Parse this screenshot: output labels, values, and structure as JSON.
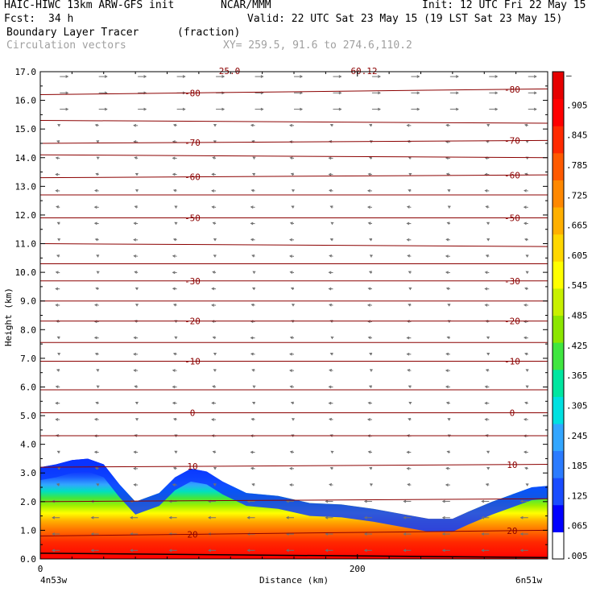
{
  "header": {
    "model": "HAIC-HIWC 13km ARW-GFS init",
    "org": "NCAR/MMM",
    "init": "Init: 12 UTC Fri 22 May 15",
    "fcst_label": "Fcst:",
    "fcst_value": "34 h",
    "valid": "Valid: 22 UTC Sat 23 May 15 (19 LST Sat 23 May 15)",
    "field": "Boundary Layer Tracer",
    "units": "(fraction)",
    "vectors": "Circulation vectors",
    "xy": "XY= 259.5, 91.6 to 274.6,110.2"
  },
  "chart_data": {
    "type": "heatmap",
    "title": "Boundary Layer Tracer",
    "units": "(fraction)",
    "xlabel": "Distance (km)",
    "ylabel": "Height (km)",
    "x_start_label": "4n53w",
    "x_end_label": "6n51w",
    "x_ticks": [
      "0",
      "200"
    ],
    "xlim": [
      0,
      320
    ],
    "ylim": [
      0,
      17
    ],
    "y_ticks": [
      "0.0",
      "1.0",
      "2.0",
      "3.0",
      "4.0",
      "5.0",
      "6.0",
      "7.0",
      "8.0",
      "9.0",
      "10.0",
      "11.0",
      "12.0",
      "13.0",
      "14.0",
      "15.0",
      "16.0",
      "17.0"
    ],
    "colorbar_labels": [
      ".005",
      ".065",
      ".125",
      ".185",
      ".245",
      ".305",
      ".365",
      ".425",
      ".485",
      ".545",
      ".605",
      ".665",
      ".725",
      ".785",
      ".845",
      ".905",
      "–"
    ],
    "colorbar_colors": [
      "#ffffff",
      "#0000ff",
      "#1a4cff",
      "#2b7bff",
      "#33a6ff",
      "#00e0e0",
      "#00e6a0",
      "#40e640",
      "#8ce600",
      "#c8f000",
      "#ffff00",
      "#ffd700",
      "#ffb000",
      "#ff8800",
      "#ff5a00",
      "#ff2a00",
      "#ff0000",
      "#e60000"
    ],
    "tracer_top_km": [
      [
        0,
        3.2
      ],
      [
        10,
        3.3
      ],
      [
        20,
        3.45
      ],
      [
        30,
        3.5
      ],
      [
        40,
        3.3
      ],
      [
        50,
        2.6
      ],
      [
        60,
        2.0
      ],
      [
        75,
        2.3
      ],
      [
        85,
        2.85
      ],
      [
        95,
        3.15
      ],
      [
        105,
        3.05
      ],
      [
        115,
        2.7
      ],
      [
        130,
        2.3
      ],
      [
        150,
        2.2
      ],
      [
        170,
        1.95
      ],
      [
        190,
        1.9
      ],
      [
        210,
        1.75
      ],
      [
        230,
        1.55
      ],
      [
        245,
        1.4
      ],
      [
        260,
        1.4
      ],
      [
        270,
        1.65
      ],
      [
        285,
        2.0
      ],
      [
        300,
        2.3
      ],
      [
        310,
        2.5
      ],
      [
        320,
        2.55
      ]
    ],
    "isotherms": [
      {
        "label": "-80",
        "y": [
          16.2,
          16.4
        ]
      },
      {
        "label": "",
        "y": [
          15.3,
          15.2
        ]
      },
      {
        "label": "-70",
        "y": [
          14.5,
          14.6
        ]
      },
      {
        "label": "",
        "y": [
          14.1,
          14.0
        ]
      },
      {
        "label": "-60",
        "y": [
          13.3,
          13.4
        ]
      },
      {
        "label": "",
        "y": [
          12.7,
          12.7
        ]
      },
      {
        "label": "-50",
        "y": [
          11.9,
          11.9
        ]
      },
      {
        "label": "",
        "y": [
          11.0,
          10.9
        ]
      },
      {
        "label": "",
        "y": [
          10.3,
          10.3
        ]
      },
      {
        "label": "-30",
        "y": [
          9.7,
          9.7
        ]
      },
      {
        "label": "",
        "y": [
          9.0,
          9.0
        ]
      },
      {
        "label": "-20",
        "y": [
          8.3,
          8.3
        ]
      },
      {
        "label": "",
        "y": [
          7.55,
          7.55
        ]
      },
      {
        "label": "-10",
        "y": [
          6.9,
          6.9
        ]
      },
      {
        "label": "",
        "y": [
          5.9,
          5.9
        ]
      },
      {
        "label": "0",
        "y": [
          5.1,
          5.1
        ]
      },
      {
        "label": "",
        "y": [
          4.3,
          4.3
        ]
      },
      {
        "label": "10",
        "y": [
          3.2,
          3.3
        ]
      },
      {
        "label": "",
        "y": [
          2.0,
          2.1
        ]
      },
      {
        "label": "20",
        "y": [
          0.8,
          1.0
        ]
      }
    ],
    "iso_top_labels": [
      "25.0",
      "60.12"
    ]
  }
}
